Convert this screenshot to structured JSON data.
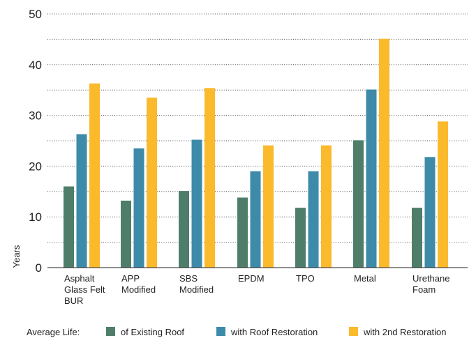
{
  "chart_data": {
    "type": "bar",
    "title": "",
    "xlabel": "",
    "ylabel": "Years",
    "ylim": [
      0,
      50
    ],
    "yticks": [
      0,
      10,
      20,
      30,
      40,
      50
    ],
    "grid": "dotted horizontal, every 5",
    "categories": [
      [
        "Asphalt",
        "Glass Felt",
        "BUR"
      ],
      [
        "APP",
        "Modified"
      ],
      [
        "SBS",
        "Modified"
      ],
      [
        "EPDM"
      ],
      [
        "TPO"
      ],
      [
        "Metal"
      ],
      [
        "Urethane",
        "Foam"
      ]
    ],
    "legend_title": "Average Life:",
    "legend_position": "bottom",
    "series": [
      {
        "name": "of Existing Roof",
        "color": "#4e7e6a",
        "values": [
          16,
          13.2,
          15.1,
          13.8,
          11.8,
          25.1,
          11.8
        ]
      },
      {
        "name": "with Roof Restoration",
        "color": "#3d8aa9",
        "values": [
          26.3,
          23.5,
          25.2,
          19,
          19,
          35.1,
          21.8
        ]
      },
      {
        "name": "with 2nd Restoration",
        "color": "#fbb92c",
        "values": [
          36.3,
          33.5,
          35.4,
          24.1,
          24.1,
          45.1,
          28.8
        ]
      }
    ]
  }
}
